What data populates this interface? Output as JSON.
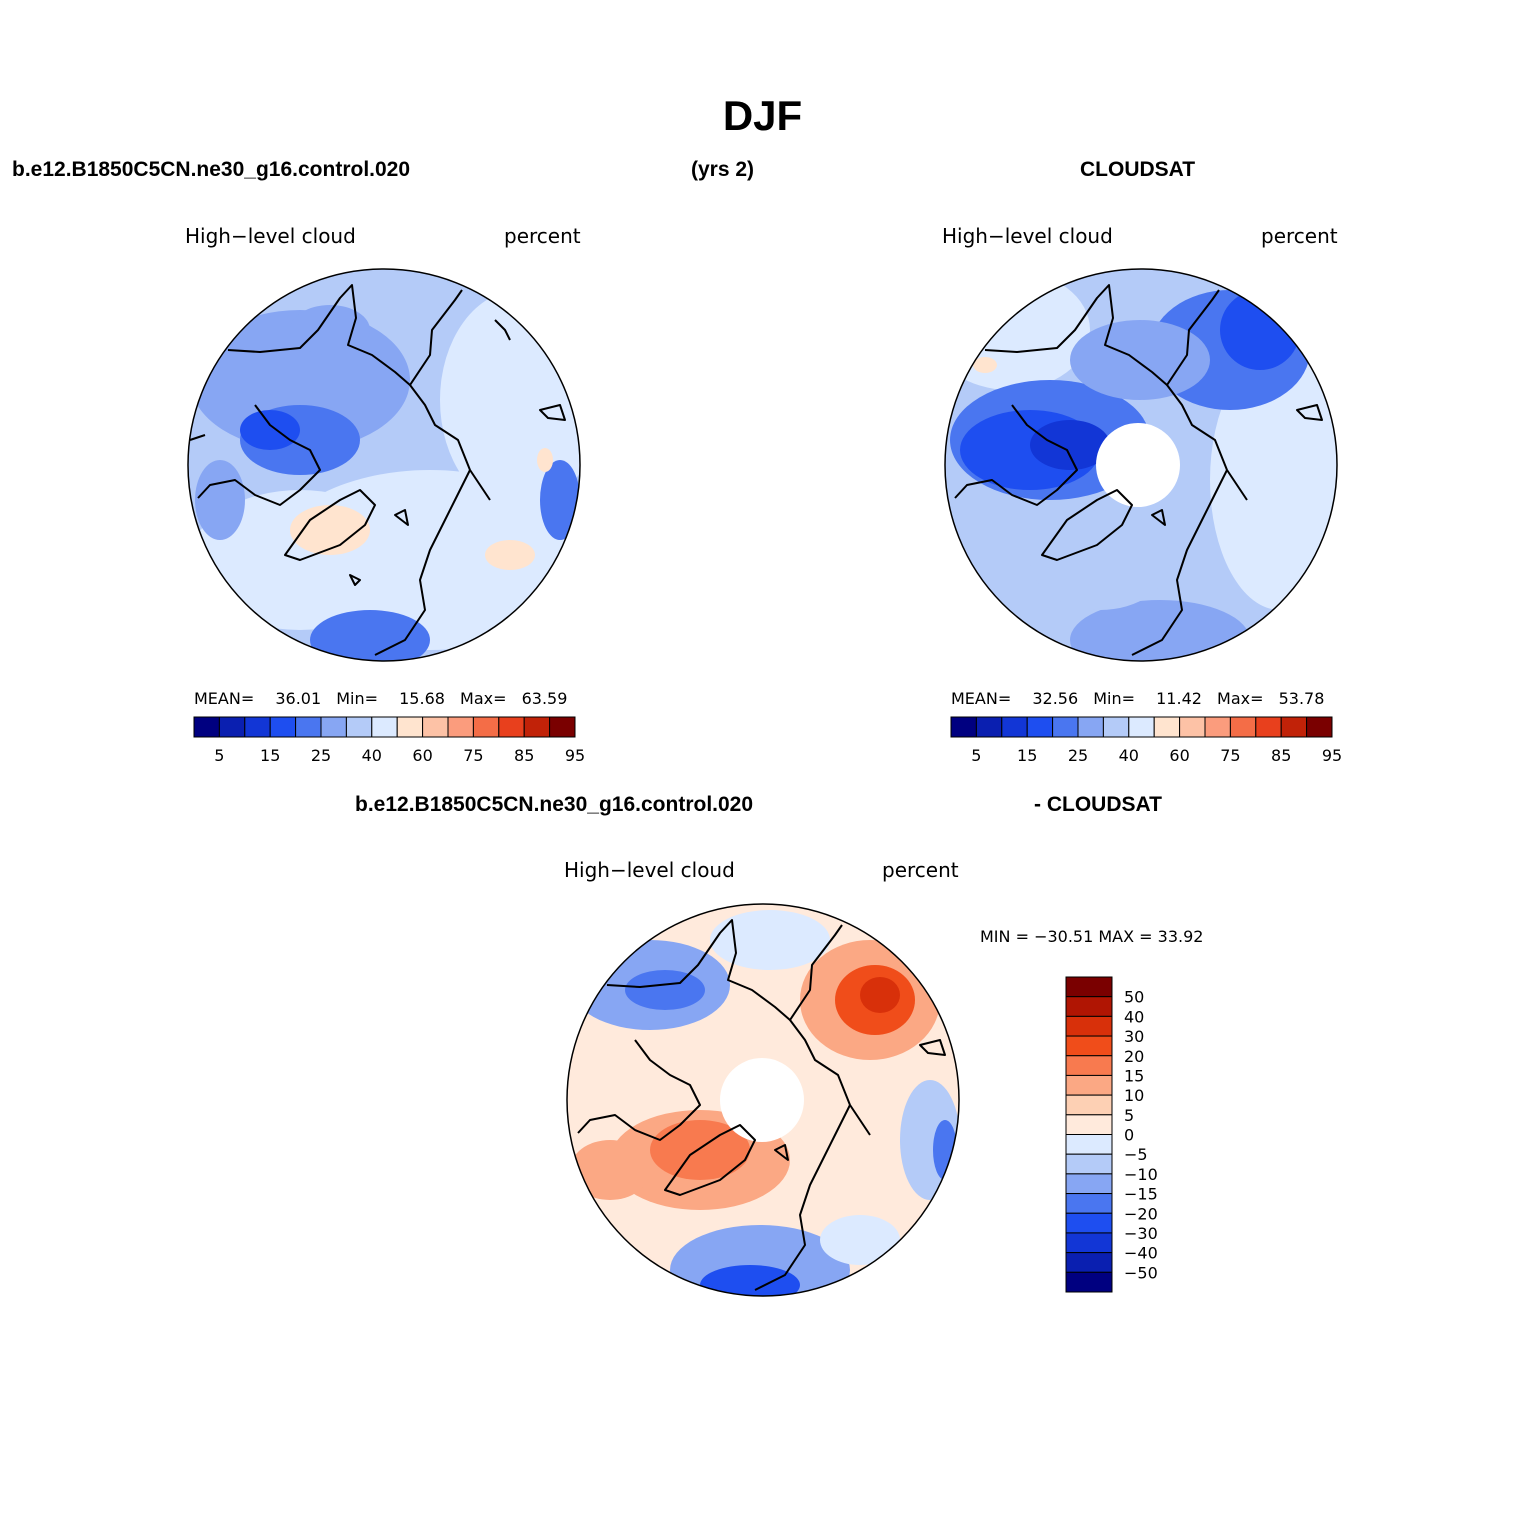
{
  "title": "DJF",
  "header": {
    "case_name": "b.e12.B1850C5CN.ne30_g16.control.020",
    "years": "(yrs 2)",
    "obs_name": "CLOUDSAT"
  },
  "panels": {
    "model": {
      "variable_label": "High−level cloud",
      "units_label": "percent",
      "stats": {
        "mean_label": "MEAN=",
        "mean": "36.01",
        "min_label": "Min=",
        "min": "15.68",
        "max_label": "Max=",
        "max": "63.59"
      }
    },
    "obs": {
      "variable_label": "High−level cloud",
      "units_label": "percent",
      "stats": {
        "mean_label": "MEAN=",
        "mean": "32.56",
        "min_label": "Min=",
        "min": "11.42",
        "max_label": "Max=",
        "max": "53.78"
      }
    },
    "diff": {
      "title_left": "b.e12.B1850C5CN.ne30_g16.control.020",
      "title_right": "- CLOUDSAT",
      "variable_label": "High−level cloud",
      "units_label": "percent",
      "minmax": "MIN = −30.51  MAX =   33.92"
    }
  },
  "colorbar_abs": {
    "colors": [
      "#000080",
      "#0a1fb0",
      "#1236d6",
      "#1e4ef0",
      "#4a76f0",
      "#87a6f3",
      "#b4cbf8",
      "#dceaff",
      "#ffe4cf",
      "#fdc2a6",
      "#fb9c7d",
      "#f46d47",
      "#e8401d",
      "#c12208",
      "#7a0000"
    ],
    "tick_labels": [
      "5",
      "15",
      "25",
      "40",
      "60",
      "75",
      "85",
      "95"
    ]
  },
  "colorbar_diff": {
    "colors": [
      "#7a0000",
      "#b01503",
      "#d8300a",
      "#f04d1a",
      "#f87a4f",
      "#fba884",
      "#fdd0b4",
      "#ffeadc",
      "#dceaff",
      "#b4cbf8",
      "#87a6f3",
      "#4a76f0",
      "#1e4ef0",
      "#1236d6",
      "#0a1fb0",
      "#000080"
    ],
    "tick_labels": [
      "50",
      "40",
      "30",
      "20",
      "15",
      "10",
      "5",
      "0",
      "−5",
      "−10",
      "−15",
      "−20",
      "−30",
      "−40",
      "−50"
    ]
  }
}
